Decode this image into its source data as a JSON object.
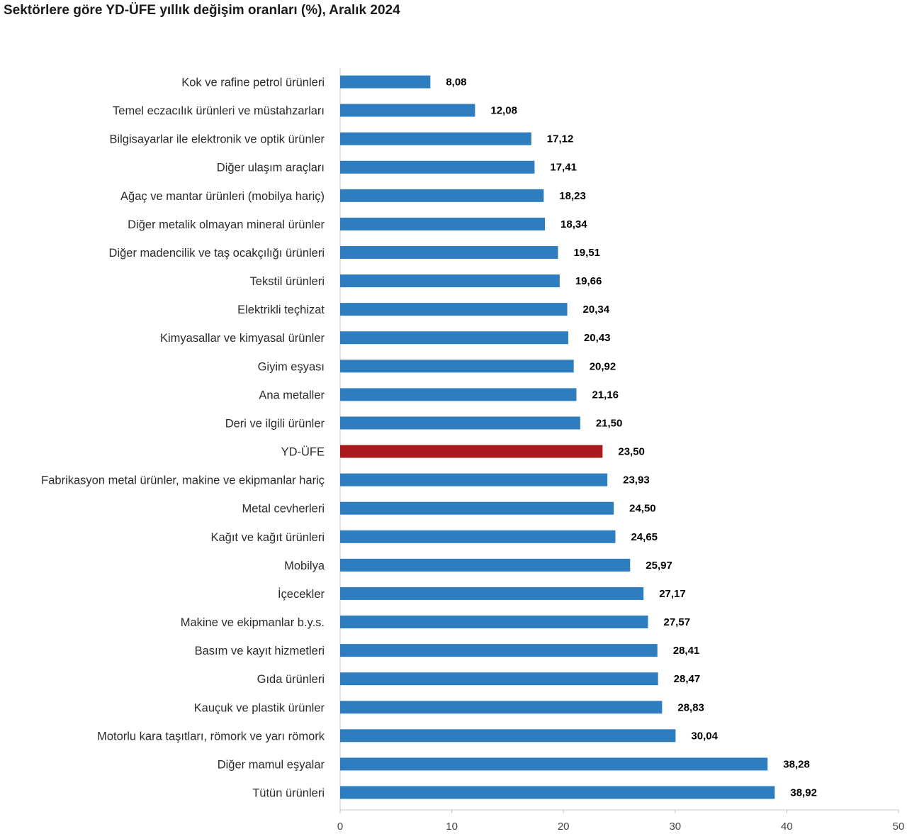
{
  "colors": {
    "bar": "#2e7dbe",
    "highlight": "#aa191e",
    "category_text": "#2b2b2b",
    "value_text": "#000000",
    "tick_text": "#444444",
    "axis": "#c4c4c4"
  },
  "chart_data": {
    "type": "bar",
    "orientation": "horizontal",
    "title": "Sektörlere göre YD-ÜFE yıllık değişim oranları (%), Aralık 2024",
    "xlabel": "",
    "ylabel": "",
    "categories": [
      "Kok ve rafine petrol ürünleri",
      "Temel eczacılık ürünleri ve müstahzarları",
      "Bilgisayarlar ile elektronik ve optik ürünler",
      "Diğer ulaşım araçları",
      "Ağaç ve mantar ürünleri (mobilya hariç)",
      "Diğer metalik olmayan mineral ürünler",
      "Diğer madencilik ve taş ocakçılığı ürünleri",
      "Tekstil ürünleri",
      "Elektrikli teçhizat",
      "Kimyasallar ve kimyasal ürünler",
      "Giyim eşyası",
      "Ana metaller",
      "Deri ve ilgili ürünler",
      "YD-ÜFE",
      "Fabrikasyon metal ürünler, makine ve ekipmanlar hariç",
      "Metal cevherleri",
      "Kağıt ve kağıt ürünleri",
      "Mobilya",
      "İçecekler",
      "Makine ve ekipmanlar b.y.s.",
      "Basım ve kayıt hizmetleri",
      "Gıda ürünleri",
      "Kauçuk ve plastik ürünler",
      "Motorlu kara taşıtları, römork ve yarı römork",
      "Diğer mamul eşyalar",
      "Tütün ürünleri"
    ],
    "values": [
      8.08,
      12.08,
      17.12,
      17.41,
      18.23,
      18.34,
      19.51,
      19.66,
      20.34,
      20.43,
      20.92,
      21.16,
      21.5,
      23.5,
      23.93,
      24.5,
      24.65,
      25.97,
      27.17,
      27.57,
      28.41,
      28.47,
      28.83,
      30.04,
      38.28,
      38.92
    ],
    "value_labels": [
      "8,08",
      "12,08",
      "17,12",
      "17,41",
      "18,23",
      "18,34",
      "19,51",
      "19,66",
      "20,34",
      "20,43",
      "20,92",
      "21,16",
      "21,50",
      "23,50",
      "23,93",
      "24,50",
      "24,65",
      "25,97",
      "27,17",
      "27,57",
      "28,41",
      "28,47",
      "28,83",
      "30,04",
      "38,28",
      "38,92"
    ],
    "highlight_index": 13,
    "xlim": [
      0,
      50
    ],
    "xticks": [
      0,
      10,
      20,
      30,
      40,
      50
    ],
    "grid": false,
    "legend": false
  }
}
